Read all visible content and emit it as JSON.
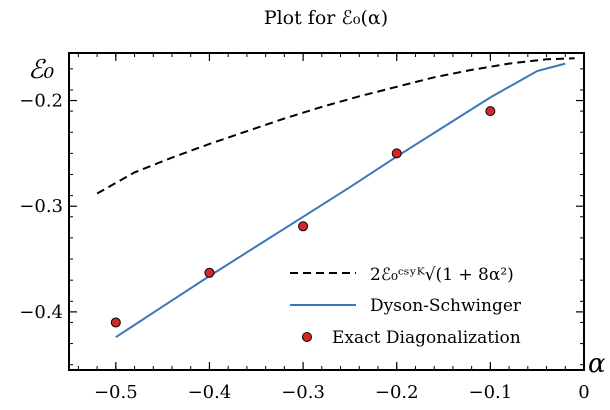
{
  "chart_data": {
    "type": "line",
    "title": "Plot for ℰ₀(α)",
    "xlabel": "α",
    "ylabel": "ℰ₀",
    "xlim": [
      -0.55,
      0.0
    ],
    "ylim": [
      -0.455,
      -0.155
    ],
    "x_ticks": [
      -0.5,
      -0.4,
      -0.3,
      -0.2,
      -0.1,
      0.0
    ],
    "x_tick_labels": [
      "−0.5",
      "−0.4",
      "−0.3",
      "−0.2",
      "−0.1",
      "0"
    ],
    "y_ticks": [
      -0.4,
      -0.3,
      -0.2
    ],
    "y_tick_labels": [
      "−0.4",
      "−0.3",
      "−0.2"
    ],
    "legend_position": "bottom-right",
    "series": [
      {
        "name": "2ℰ₀ᶜˢʸᴷ√(1 + 8α²)",
        "style": "dashed",
        "color": "#000000",
        "x": [
          -0.52,
          -0.48,
          -0.44,
          -0.4,
          -0.36,
          -0.32,
          -0.28,
          -0.24,
          -0.2,
          -0.16,
          -0.12,
          -0.08,
          -0.04,
          -0.01
        ],
        "y": [
          -0.288,
          -0.268,
          -0.254,
          -0.241,
          -0.229,
          -0.217,
          -0.206,
          -0.196,
          -0.187,
          -0.178,
          -0.171,
          -0.165,
          -0.161,
          -0.16
        ]
      },
      {
        "name": "Dyson-Schwinger",
        "style": "solid",
        "color": "#3a78b8",
        "x": [
          -0.5,
          -0.45,
          -0.4,
          -0.35,
          -0.3,
          -0.25,
          -0.2,
          -0.15,
          -0.1,
          -0.05,
          -0.02
        ],
        "y": [
          -0.424,
          -0.395,
          -0.366,
          -0.338,
          -0.31,
          -0.282,
          -0.253,
          -0.225,
          -0.197,
          -0.172,
          -0.165
        ]
      },
      {
        "name": "Exact Diagonalization",
        "style": "marker",
        "color": "#d62728",
        "x": [
          -0.5,
          -0.4,
          -0.3,
          -0.2,
          -0.1
        ],
        "y": [
          -0.41,
          -0.363,
          -0.319,
          -0.25,
          -0.21
        ]
      }
    ]
  }
}
